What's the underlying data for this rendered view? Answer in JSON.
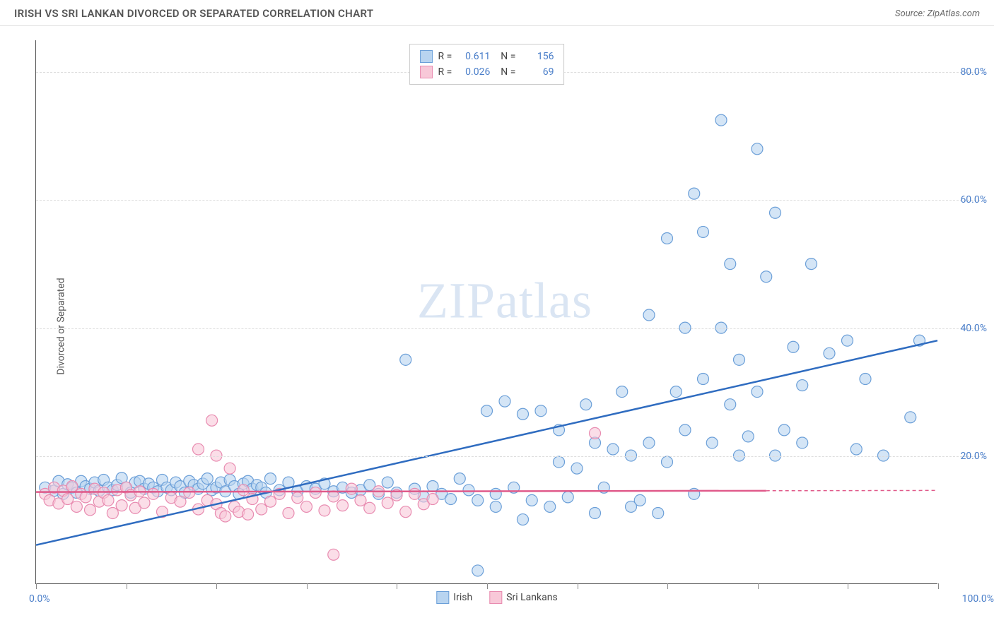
{
  "header": {
    "title": "IRISH VS SRI LANKAN DIVORCED OR SEPARATED CORRELATION CHART",
    "source_label": "Source: ",
    "source_value": "ZipAtlas.com"
  },
  "watermark": {
    "strong": "ZIP",
    "light": "atlas"
  },
  "chart": {
    "type": "scatter",
    "background_color": "#ffffff",
    "grid_color": "#dddddd",
    "axis_color": "#555555",
    "y_axis_title": "Divorced or Separated",
    "y_axis_title_fontsize": 14,
    "tick_label_color": "#4a7ec9",
    "xlim": [
      0,
      100
    ],
    "ylim": [
      0,
      85
    ],
    "x_min_label": "0.0%",
    "x_max_label": "100.0%",
    "y_ticks": [
      {
        "value": 20,
        "label": "20.0%"
      },
      {
        "value": 40,
        "label": "40.0%"
      },
      {
        "value": 60,
        "label": "60.0%"
      },
      {
        "value": 80,
        "label": "80.0%"
      }
    ],
    "x_tick_positions": [
      0,
      10,
      20,
      30,
      40,
      50,
      60,
      70,
      80,
      90,
      100
    ],
    "marker_radius": 8,
    "marker_stroke_width": 1.2,
    "trend_line_width": 2.5,
    "legend_top": {
      "border_color": "#cccccc",
      "rows": [
        {
          "swatch_fill": "#b8d4f0",
          "swatch_stroke": "#6b9fd8",
          "R_label": "R =",
          "R_value": "0.611",
          "N_label": "N =",
          "N_value": "156"
        },
        {
          "swatch_fill": "#f8c8d8",
          "swatch_stroke": "#e88bb0",
          "R_label": "R =",
          "R_value": "0.026",
          "N_label": "N =",
          "N_value": "69"
        }
      ]
    },
    "legend_bottom": {
      "items": [
        {
          "label": "Irish",
          "swatch_fill": "#b8d4f0",
          "swatch_stroke": "#6b9fd8"
        },
        {
          "label": "Sri Lankans",
          "swatch_fill": "#f8c8d8",
          "swatch_stroke": "#e88bb0"
        }
      ]
    },
    "series": [
      {
        "name": "Irish",
        "marker_fill": "rgba(184,212,240,0.6)",
        "marker_stroke": "#6b9fd8",
        "trend_color": "#2f6cc0",
        "trend_start": {
          "x": 0,
          "y": 6
        },
        "trend_end": {
          "x": 100,
          "y": 38
        },
        "trend_dash_extension": false,
        "points": [
          [
            1,
            15
          ],
          [
            2,
            14.5
          ],
          [
            2.5,
            16
          ],
          [
            3,
            14
          ],
          [
            3.5,
            15.5
          ],
          [
            4,
            15
          ],
          [
            4.5,
            14.2
          ],
          [
            5,
            16
          ],
          [
            5.5,
            15.2
          ],
          [
            6,
            14.8
          ],
          [
            6.5,
            15.8
          ],
          [
            7,
            14.5
          ],
          [
            7.5,
            16.2
          ],
          [
            8,
            15
          ],
          [
            8.5,
            14.6
          ],
          [
            9,
            15.4
          ],
          [
            9.5,
            16.5
          ],
          [
            10,
            15
          ],
          [
            10.5,
            14.2
          ],
          [
            11,
            15.8
          ],
          [
            11.5,
            16
          ],
          [
            12,
            14.8
          ],
          [
            12.5,
            15.6
          ],
          [
            13,
            15
          ],
          [
            13.5,
            14.4
          ],
          [
            14,
            16.2
          ],
          [
            14.5,
            15
          ],
          [
            15,
            14.6
          ],
          [
            15.5,
            15.8
          ],
          [
            16,
            15.2
          ],
          [
            16.5,
            14.2
          ],
          [
            17,
            16
          ],
          [
            17.5,
            15.4
          ],
          [
            18,
            14.8
          ],
          [
            18.5,
            15.6
          ],
          [
            19,
            16.4
          ],
          [
            19.5,
            14.6
          ],
          [
            20,
            15
          ],
          [
            20.5,
            15.8
          ],
          [
            21,
            14.4
          ],
          [
            21.5,
            16.2
          ],
          [
            22,
            15.2
          ],
          [
            22.5,
            14
          ],
          [
            23,
            15.6
          ],
          [
            23.5,
            16
          ],
          [
            24,
            14.8
          ],
          [
            24.5,
            15.4
          ],
          [
            25,
            15
          ],
          [
            25.5,
            14.2
          ],
          [
            26,
            16.4
          ],
          [
            27,
            14.6
          ],
          [
            28,
            15.8
          ],
          [
            29,
            14.4
          ],
          [
            30,
            15.2
          ],
          [
            31,
            14.8
          ],
          [
            32,
            15.6
          ],
          [
            33,
            14.4
          ],
          [
            34,
            15
          ],
          [
            35,
            14.2
          ],
          [
            36,
            14.6
          ],
          [
            37,
            15.4
          ],
          [
            38,
            14
          ],
          [
            39,
            15.8
          ],
          [
            40,
            14.2
          ],
          [
            41,
            35
          ],
          [
            42,
            14.8
          ],
          [
            43,
            13.6
          ],
          [
            44,
            15.2
          ],
          [
            45,
            14
          ],
          [
            46,
            13.2
          ],
          [
            47,
            16.4
          ],
          [
            48,
            14.6
          ],
          [
            49,
            2
          ],
          [
            49,
            13
          ],
          [
            50,
            27
          ],
          [
            51,
            14
          ],
          [
            51,
            12
          ],
          [
            52,
            28.5
          ],
          [
            53,
            15
          ],
          [
            54,
            26.5
          ],
          [
            54,
            10
          ],
          [
            55,
            13
          ],
          [
            56,
            27
          ],
          [
            57,
            12
          ],
          [
            58,
            24
          ],
          [
            58,
            19
          ],
          [
            59,
            13.5
          ],
          [
            60,
            18
          ],
          [
            61,
            28
          ],
          [
            62,
            11
          ],
          [
            62,
            22
          ],
          [
            63,
            15
          ],
          [
            64,
            21
          ],
          [
            65,
            30
          ],
          [
            66,
            12
          ],
          [
            66,
            20
          ],
          [
            67,
            13
          ],
          [
            68,
            42
          ],
          [
            68,
            22
          ],
          [
            69,
            11
          ],
          [
            70,
            19
          ],
          [
            70,
            54
          ],
          [
            71,
            30
          ],
          [
            72,
            24
          ],
          [
            72,
            40
          ],
          [
            73,
            14
          ],
          [
            73,
            61
          ],
          [
            74,
            55
          ],
          [
            74,
            32
          ],
          [
            75,
            22
          ],
          [
            76,
            72.5
          ],
          [
            76,
            40
          ],
          [
            77,
            28
          ],
          [
            77,
            50
          ],
          [
            78,
            20
          ],
          [
            78,
            35
          ],
          [
            79,
            23
          ],
          [
            80,
            68
          ],
          [
            80,
            30
          ],
          [
            81,
            48
          ],
          [
            82,
            20
          ],
          [
            82,
            58
          ],
          [
            83,
            24
          ],
          [
            84,
            37
          ],
          [
            85,
            22
          ],
          [
            85,
            31
          ],
          [
            86,
            50
          ],
          [
            88,
            36
          ],
          [
            90,
            38
          ],
          [
            91,
            21
          ],
          [
            92,
            32
          ],
          [
            94,
            20
          ],
          [
            97,
            26
          ],
          [
            98,
            38
          ]
        ]
      },
      {
        "name": "Sri Lankans",
        "marker_fill": "rgba(248,200,216,0.6)",
        "marker_stroke": "#e88bb0",
        "trend_color": "#e05a8a",
        "trend_start": {
          "x": 0,
          "y": 14.3
        },
        "trend_end": {
          "x": 81,
          "y": 14.5
        },
        "trend_dash_extension": true,
        "points": [
          [
            1,
            14
          ],
          [
            1.5,
            13
          ],
          [
            2,
            15
          ],
          [
            2.5,
            12.5
          ],
          [
            3,
            14.5
          ],
          [
            3.5,
            13.2
          ],
          [
            4,
            15.2
          ],
          [
            4.5,
            12
          ],
          [
            5,
            14
          ],
          [
            5.5,
            13.5
          ],
          [
            6,
            11.5
          ],
          [
            6.5,
            14.8
          ],
          [
            7,
            12.8
          ],
          [
            7.5,
            14.2
          ],
          [
            8,
            13
          ],
          [
            8.5,
            11
          ],
          [
            9,
            14.6
          ],
          [
            9.5,
            12.2
          ],
          [
            10,
            15
          ],
          [
            10.5,
            13.8
          ],
          [
            11,
            11.8
          ],
          [
            11.5,
            14.4
          ],
          [
            12,
            12.6
          ],
          [
            13,
            14
          ],
          [
            14,
            11.2
          ],
          [
            15,
            13.4
          ],
          [
            16,
            12.8
          ],
          [
            17,
            14.2
          ],
          [
            18,
            11.6
          ],
          [
            18,
            21
          ],
          [
            19,
            13
          ],
          [
            19.5,
            25.5
          ],
          [
            20,
            20
          ],
          [
            20,
            12.4
          ],
          [
            20.5,
            11
          ],
          [
            21,
            10.5
          ],
          [
            21.5,
            18
          ],
          [
            22,
            12
          ],
          [
            22.5,
            11.2
          ],
          [
            23,
            14.6
          ],
          [
            23.5,
            10.8
          ],
          [
            24,
            13.2
          ],
          [
            25,
            11.6
          ],
          [
            26,
            12.8
          ],
          [
            27,
            14
          ],
          [
            28,
            11
          ],
          [
            29,
            13.4
          ],
          [
            30,
            12
          ],
          [
            31,
            14.2
          ],
          [
            32,
            11.4
          ],
          [
            33,
            13.6
          ],
          [
            33,
            4.5
          ],
          [
            34,
            12.2
          ],
          [
            35,
            14.8
          ],
          [
            36,
            13
          ],
          [
            37,
            11.8
          ],
          [
            38,
            14.4
          ],
          [
            39,
            12.6
          ],
          [
            40,
            13.8
          ],
          [
            41,
            11.2
          ],
          [
            42,
            14
          ],
          [
            43,
            12.4
          ],
          [
            44,
            13.2
          ],
          [
            62,
            23.5
          ]
        ]
      }
    ]
  }
}
